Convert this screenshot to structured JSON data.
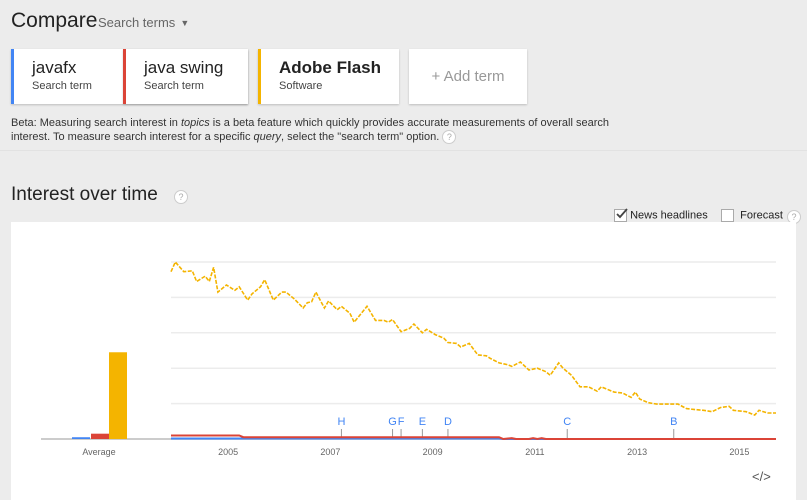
{
  "header": {
    "title": "Compare",
    "search_type": "Search terms"
  },
  "terms": [
    {
      "label": "javafx",
      "type": "Search term",
      "color": "#4285f4"
    },
    {
      "label": "java swing",
      "type": "Search term",
      "color": "#db4437"
    },
    {
      "label": "Adobe Flash",
      "type": "Software",
      "color": "#f4b400"
    }
  ],
  "add_term": "+ Add term",
  "beta": {
    "pre": "Beta: Measuring search interest in ",
    "em1": "topics",
    "mid": " is a beta feature which quickly provides accurate measurements of overall search interest. To measure search interest for a specific ",
    "em2": "query",
    "post": ", select the \"search term\" option."
  },
  "section": {
    "title": "Interest over time",
    "news_label": "News headlines",
    "news_checked": true,
    "forecast_label": "Forecast",
    "forecast_checked": false
  },
  "embed_icon": "code-embed-icon",
  "chart_data": {
    "type": "line",
    "ylim": [
      0,
      100
    ],
    "grid": true,
    "x_ticks": [
      "2005",
      "2007",
      "2009",
      "2011",
      "2013",
      "2015"
    ],
    "average_label": "Average",
    "average": [
      {
        "term": "javafx",
        "value": 1,
        "color": "#4285f4"
      },
      {
        "term": "java swing",
        "value": 3,
        "color": "#db4437"
      },
      {
        "term": "Adobe Flash",
        "value": 49,
        "color": "#f4b400"
      }
    ],
    "series": [
      {
        "term": "Adobe Flash",
        "color": "#f4b400",
        "dashed": true,
        "points": [
          [
            "2004-01",
            94.5
          ],
          [
            "2004-02",
            100
          ],
          [
            "2004-04",
            94.5
          ],
          [
            "2004-06",
            95
          ],
          [
            "2004-07",
            89
          ],
          [
            "2004-09",
            92
          ],
          [
            "2004-10",
            89
          ],
          [
            "2004-11",
            97
          ],
          [
            "2004-12",
            83
          ],
          [
            "2005-02",
            87
          ],
          [
            "2005-04",
            84
          ],
          [
            "2005-05",
            86
          ],
          [
            "2005-07",
            78.5
          ],
          [
            "2005-08",
            82
          ],
          [
            "2005-10",
            86
          ],
          [
            "2005-11",
            90
          ],
          [
            "2006-01",
            78.5
          ],
          [
            "2006-03",
            83
          ],
          [
            "2006-04",
            83
          ],
          [
            "2006-06",
            79
          ],
          [
            "2006-08",
            74
          ],
          [
            "2006-09",
            77
          ],
          [
            "2006-10",
            77.5
          ],
          [
            "2006-11",
            83
          ],
          [
            "2007-01",
            74
          ],
          [
            "2007-02",
            78
          ],
          [
            "2007-04",
            73
          ],
          [
            "2007-05",
            75
          ],
          [
            "2007-07",
            71
          ],
          [
            "2007-08",
            66
          ],
          [
            "2007-10",
            72
          ],
          [
            "2007-11",
            75
          ],
          [
            "2008-01",
            67
          ],
          [
            "2008-03",
            67
          ],
          [
            "2008-04",
            66
          ],
          [
            "2008-05",
            67.5
          ],
          [
            "2008-07",
            60.6
          ],
          [
            "2008-09",
            62.5
          ],
          [
            "2008-10",
            65
          ],
          [
            "2008-12",
            60
          ],
          [
            "2009-01",
            62
          ],
          [
            "2009-03",
            59
          ],
          [
            "2009-05",
            57
          ],
          [
            "2009-06",
            54.5
          ],
          [
            "2009-08",
            54
          ],
          [
            "2009-09",
            52
          ],
          [
            "2009-11",
            54
          ],
          [
            "2010-01",
            47.5
          ],
          [
            "2010-03",
            47
          ],
          [
            "2010-04",
            45.5
          ],
          [
            "2010-06",
            43
          ],
          [
            "2010-08",
            42
          ],
          [
            "2010-09",
            41
          ],
          [
            "2010-11",
            43.5
          ],
          [
            "2011-01",
            39
          ],
          [
            "2011-03",
            40
          ],
          [
            "2011-05",
            38
          ],
          [
            "2011-06",
            36
          ],
          [
            "2011-08",
            43
          ],
          [
            "2011-09",
            40
          ],
          [
            "2011-11",
            36
          ],
          [
            "2012-01",
            29.5
          ],
          [
            "2012-03",
            29.5
          ],
          [
            "2012-05",
            27
          ],
          [
            "2012-06",
            29.5
          ],
          [
            "2012-07",
            28.5
          ],
          [
            "2012-09",
            26.5
          ],
          [
            "2012-11",
            26
          ],
          [
            "2013-01",
            23.5
          ],
          [
            "2013-02",
            26.5
          ],
          [
            "2013-03",
            22.6
          ],
          [
            "2013-05",
            20.5
          ],
          [
            "2013-07",
            19.7
          ],
          [
            "2013-10",
            19.7
          ],
          [
            "2013-12",
            19.7
          ],
          [
            "2014-02",
            17.2
          ],
          [
            "2014-04",
            16.6
          ],
          [
            "2014-06",
            16.2
          ],
          [
            "2014-08",
            15.4
          ],
          [
            "2014-10",
            17.8
          ],
          [
            "2014-12",
            18.5
          ],
          [
            "2015-01",
            16.2
          ],
          [
            "2015-04",
            15.4
          ],
          [
            "2015-06",
            13.5
          ],
          [
            "2015-07",
            16.2
          ],
          [
            "2015-09",
            14.7
          ],
          [
            "2015-11",
            14.7
          ]
        ]
      },
      {
        "term": "java swing",
        "color": "#db4437",
        "dashed": false,
        "points": [
          [
            "2004-01",
            2
          ],
          [
            "2005-05",
            2
          ],
          [
            "2005-06",
            1
          ],
          [
            "2010-06",
            1
          ],
          [
            "2010-07",
            0
          ],
          [
            "2010-09",
            0.5
          ],
          [
            "2010-10",
            0
          ],
          [
            "2011-01",
            0
          ],
          [
            "2011-02",
            0.5
          ],
          [
            "2011-03",
            0
          ],
          [
            "2011-04",
            0.5
          ],
          [
            "2011-05",
            0
          ],
          [
            "2015-11",
            0
          ]
        ]
      },
      {
        "term": "javafx",
        "color": "#4285f4",
        "dashed": false,
        "points": [
          [
            "2004-01",
            0.3
          ],
          [
            "2010-06",
            0.3
          ],
          [
            "2010-07",
            0
          ],
          [
            "2015-11",
            0
          ]
        ]
      }
    ],
    "annotations": [
      {
        "letter": "H",
        "date": "2007-05"
      },
      {
        "letter": "G",
        "date": "2008-05"
      },
      {
        "letter": "F",
        "date": "2008-07"
      },
      {
        "letter": "E",
        "date": "2008-12"
      },
      {
        "letter": "D",
        "date": "2009-06"
      },
      {
        "letter": "C",
        "date": "2011-10"
      },
      {
        "letter": "B",
        "date": "2013-11"
      }
    ]
  }
}
